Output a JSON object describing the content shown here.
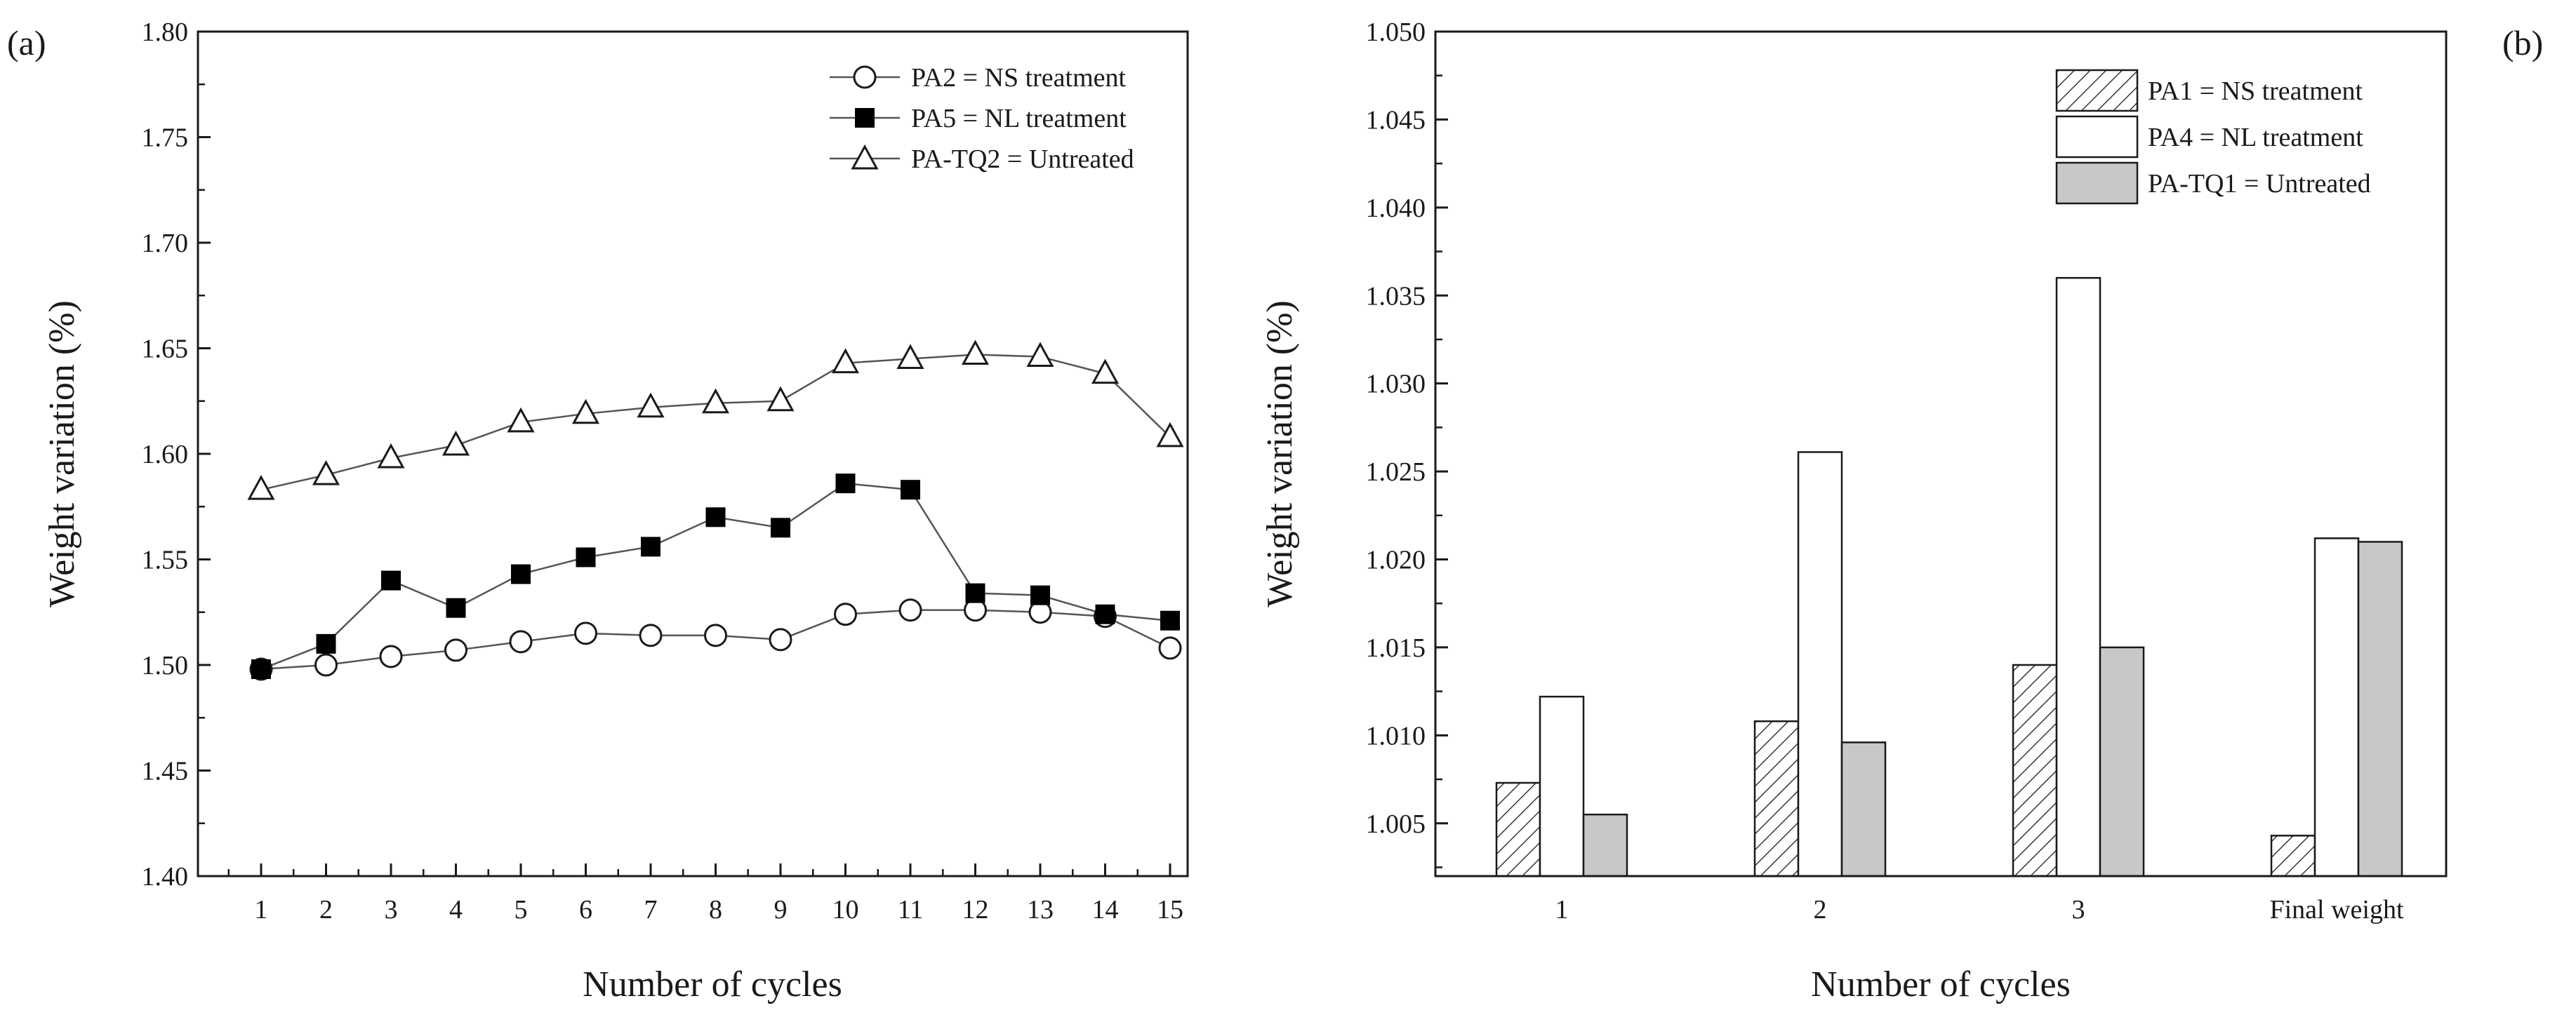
{
  "chart_data": [
    {
      "panel_label": "(a)",
      "type": "line",
      "xlabel": "Number of cycles",
      "ylabel": "Weight variation (%)",
      "ylim": [
        1.4,
        1.8
      ],
      "yticks": [
        "1.40",
        "1.45",
        "1.50",
        "1.55",
        "1.60",
        "1.65",
        "1.70",
        "1.75",
        "1.80"
      ],
      "x": [
        1,
        2,
        3,
        4,
        5,
        6,
        7,
        8,
        9,
        10,
        11,
        12,
        13,
        14,
        15
      ],
      "legend_position": "top-right",
      "series": [
        {
          "name": "PA2 = NS treatment",
          "marker": "open-circle",
          "values": [
            1.498,
            1.5,
            1.504,
            1.507,
            1.511,
            1.515,
            1.514,
            1.514,
            1.512,
            1.524,
            1.526,
            1.526,
            1.525,
            1.523,
            1.508
          ]
        },
        {
          "name": "PA5 = NL treatment",
          "marker": "filled-square",
          "values": [
            1.498,
            1.51,
            1.54,
            1.527,
            1.543,
            1.551,
            1.556,
            1.57,
            1.565,
            1.586,
            1.583,
            1.534,
            1.533,
            1.524,
            1.521
          ]
        },
        {
          "name": "PA-TQ2 = Untreated",
          "marker": "open-triangle",
          "values": [
            1.583,
            1.59,
            1.598,
            1.604,
            1.615,
            1.619,
            1.622,
            1.624,
            1.625,
            1.643,
            1.645,
            1.647,
            1.646,
            1.638,
            1.608
          ]
        }
      ]
    },
    {
      "panel_label": "(b)",
      "type": "bar",
      "xlabel": "Number of cycles",
      "ylabel": "Weight variation (%)",
      "ylim": [
        1.002,
        1.05
      ],
      "yticks": [
        "1.005",
        "1.010",
        "1.015",
        "1.020",
        "1.025",
        "1.030",
        "1.035",
        "1.040",
        "1.045",
        "1.050"
      ],
      "categories": [
        "1",
        "2",
        "3",
        "Final weight"
      ],
      "legend_position": "top-right",
      "series": [
        {
          "name": "PA1 = NS treatment",
          "fill": "hatched",
          "values": [
            1.0073,
            1.0108,
            1.014,
            1.0043
          ]
        },
        {
          "name": "PA4 = NL treatment",
          "fill": "white",
          "values": [
            1.0122,
            1.0261,
            1.036,
            1.0212
          ]
        },
        {
          "name": "PA-TQ1 = Untreated",
          "fill": "grey",
          "values": [
            1.0055,
            1.0096,
            1.015,
            1.021
          ]
        }
      ]
    }
  ],
  "colors": {
    "axis": "#1a1a1a",
    "line": "#555555",
    "grey_bar": "#c8c8c8",
    "white_bar": "#ffffff"
  }
}
